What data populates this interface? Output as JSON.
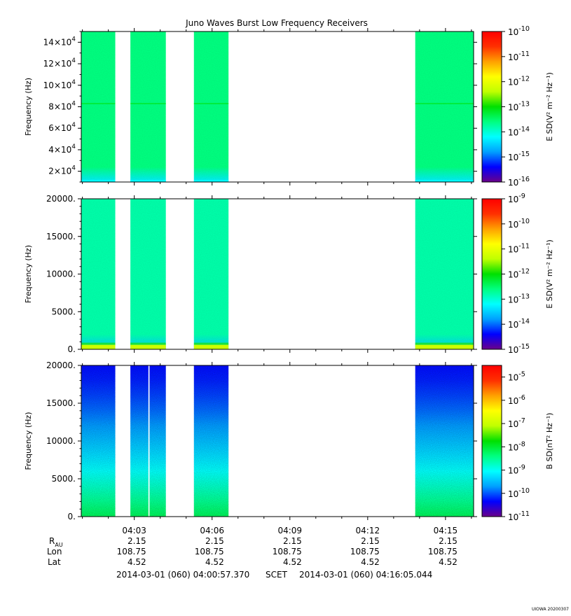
{
  "title": "Juno Waves Burst Low Frequency Receivers",
  "colors": {
    "background": "#ffffff",
    "frame": "#000000",
    "colormap": [
      "#6a008a",
      "#0000ff",
      "#00a0ff",
      "#00ffff",
      "#00ff80",
      "#00e000",
      "#c0ff00",
      "#ffff00",
      "#ffa000",
      "#ff3000",
      "#ff0000"
    ]
  },
  "chart_data": [
    {
      "type": "heatmap",
      "ylabel": "Frequency (Hz)",
      "y_ticks": [
        {
          "value": 20000,
          "mant": "2",
          "exp": "4"
        },
        {
          "value": 40000,
          "mant": "4",
          "exp": "4"
        },
        {
          "value": 60000,
          "mant": "6",
          "exp": "4"
        },
        {
          "value": 80000,
          "mant": "8",
          "exp": "4"
        },
        {
          "value": 100000,
          "mant": "10",
          "exp": "4"
        },
        {
          "value": 120000,
          "mant": "12",
          "exp": "4"
        },
        {
          "value": 140000,
          "mant": "14",
          "exp": "4"
        }
      ],
      "ylim": [
        10000,
        150000
      ],
      "colorbar_label": "E SD(V² m⁻² Hz⁻¹)",
      "colorbar_ticks": [
        {
          "exp": "-10"
        },
        {
          "exp": "-11"
        },
        {
          "exp": "-12"
        },
        {
          "exp": "-13"
        },
        {
          "exp": "-14"
        },
        {
          "exp": "-15"
        },
        {
          "exp": "-16"
        }
      ],
      "colorbar_range_log10": [
        -16,
        -10
      ],
      "bursts": [
        {
          "start": "04:00:57",
          "end": "04:02:16",
          "level_log10": -13.6
        },
        {
          "start": "04:02:51",
          "end": "04:04:13",
          "level_log10": -13.6
        },
        {
          "start": "04:05:18",
          "end": "04:06:38",
          "level_log10": -13.6
        },
        {
          "start": "04:13:50",
          "end": "04:16:05",
          "level_log10": -13.6
        }
      ],
      "features": [
        {
          "type": "line",
          "frequency_hz": 83000,
          "level_log10": -13.1
        }
      ]
    },
    {
      "type": "heatmap",
      "ylabel": "Frequency (Hz)",
      "y_ticks": [
        {
          "value": 0,
          "text": "0."
        },
        {
          "value": 5000,
          "text": "5000."
        },
        {
          "value": 10000,
          "text": "10000."
        },
        {
          "value": 15000,
          "text": "15000."
        },
        {
          "value": 20000,
          "text": "20000."
        }
      ],
      "ylim": [
        0,
        20000
      ],
      "colorbar_label": "E SD(V² m⁻² Hz⁻¹)",
      "colorbar_ticks": [
        {
          "exp": "-9"
        },
        {
          "exp": "-10"
        },
        {
          "exp": "-11"
        },
        {
          "exp": "-12"
        },
        {
          "exp": "-13"
        },
        {
          "exp": "-14"
        },
        {
          "exp": "-15"
        }
      ],
      "colorbar_range_log10": [
        -15,
        -9
      ],
      "bursts": [
        {
          "start": "04:00:57",
          "end": "04:02:16",
          "level_log10": -12.8
        },
        {
          "start": "04:02:51",
          "end": "04:04:13",
          "level_log10": -12.8
        },
        {
          "start": "04:05:18",
          "end": "04:06:38",
          "level_log10": -12.8
        },
        {
          "start": "04:13:50",
          "end": "04:16:05",
          "level_log10": -12.8
        }
      ],
      "features": [
        {
          "type": "low_freq_enhancement",
          "below_hz": 600,
          "level_log10": -11.3
        }
      ]
    },
    {
      "type": "heatmap",
      "ylabel": "Frequency (Hz)",
      "y_ticks": [
        {
          "value": 0,
          "text": "0."
        },
        {
          "value": 5000,
          "text": "5000."
        },
        {
          "value": 10000,
          "text": "10000."
        },
        {
          "value": 15000,
          "text": "15000."
        },
        {
          "value": 20000,
          "text": "20000."
        }
      ],
      "ylim": [
        0,
        20000
      ],
      "colorbar_label": "B SD(nT² Hz⁻¹)",
      "colorbar_ticks": [
        {
          "exp": "-5"
        },
        {
          "exp": "-6"
        },
        {
          "exp": "-7"
        },
        {
          "exp": "-8"
        },
        {
          "exp": "-9"
        },
        {
          "exp": "-10"
        },
        {
          "exp": "-11"
        }
      ],
      "colorbar_range_log10": [
        -11,
        -4.5
      ],
      "bursts": [
        {
          "start": "04:00:57",
          "end": "04:02:16"
        },
        {
          "start": "04:02:51",
          "end": "04:04:13"
        },
        {
          "start": "04:05:18",
          "end": "04:06:38"
        },
        {
          "start": "04:13:50",
          "end": "04:16:05"
        }
      ],
      "features": [
        {
          "type": "gradient",
          "level_log10_at_0hz": -8.2,
          "level_log10_at_20000hz": -10.3
        },
        {
          "type": "gap",
          "time": "04:03:34"
        }
      ]
    }
  ],
  "x_axis": {
    "range": [
      "04:00:57.370",
      "04:16:05.044"
    ],
    "ticks": [
      {
        "time": "04:03",
        "r_au": "2.15",
        "lon": "108.75",
        "lat": "4.52"
      },
      {
        "time": "04:06",
        "r_au": "2.15",
        "lon": "108.75",
        "lat": "4.52"
      },
      {
        "time": "04:09",
        "r_au": "2.15",
        "lon": "108.75",
        "lat": "4.52"
      },
      {
        "time": "04:12",
        "r_au": "2.15",
        "lon": "108.75",
        "lat": "4.52"
      },
      {
        "time": "04:15",
        "r_au": "2.15",
        "lon": "108.75",
        "lat": "4.52"
      }
    ],
    "minor_step_seconds": 60
  },
  "ephemeris_labels": {
    "r_main": "R",
    "r_sub": "AU",
    "lon": "Lon",
    "lat": "Lat"
  },
  "footer": {
    "start": "2014-03-01 (060) 04:00:57.370",
    "scet": "SCET",
    "end": "2014-03-01 (060) 04:16:05.044",
    "credit": "UIOWA 20200307"
  }
}
